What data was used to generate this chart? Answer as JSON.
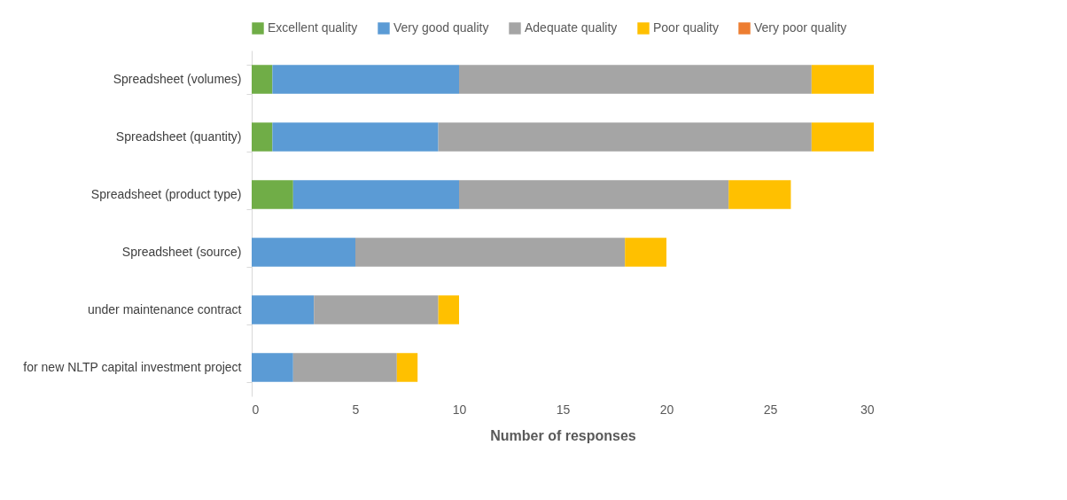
{
  "chart_data": {
    "type": "bar",
    "orientation": "horizontal",
    "stacked": true,
    "xlabel": "Number of responses",
    "categories": [
      "Spreadsheet (volumes)",
      "Spreadsheet (quantity)",
      "Spreadsheet (product type)",
      "Spreadsheet (source)",
      "under maintenance contract",
      "for new NLTP capital investment project"
    ],
    "series": [
      {
        "name": "Excellent quality",
        "color": "#70ad47",
        "values": [
          1,
          1,
          2,
          0,
          0,
          0
        ]
      },
      {
        "name": "Very good quality",
        "color": "#5b9bd5",
        "values": [
          9,
          8,
          8,
          5,
          3,
          2
        ]
      },
      {
        "name": "Adequate quality",
        "color": "#a5a5a5",
        "values": [
          17,
          18,
          13,
          13,
          6,
          5
        ]
      },
      {
        "name": "Poor quality",
        "color": "#ffc000",
        "values": [
          3,
          3,
          3,
          2,
          1,
          1
        ]
      },
      {
        "name": "Very poor quality",
        "color": "#ed7d31",
        "values": [
          0,
          0,
          0,
          0,
          0,
          0
        ]
      }
    ],
    "xlim": [
      0,
      30
    ],
    "xticks": [
      0,
      5,
      10,
      15,
      20,
      25,
      30
    ],
    "grid": false,
    "legend": "top"
  }
}
